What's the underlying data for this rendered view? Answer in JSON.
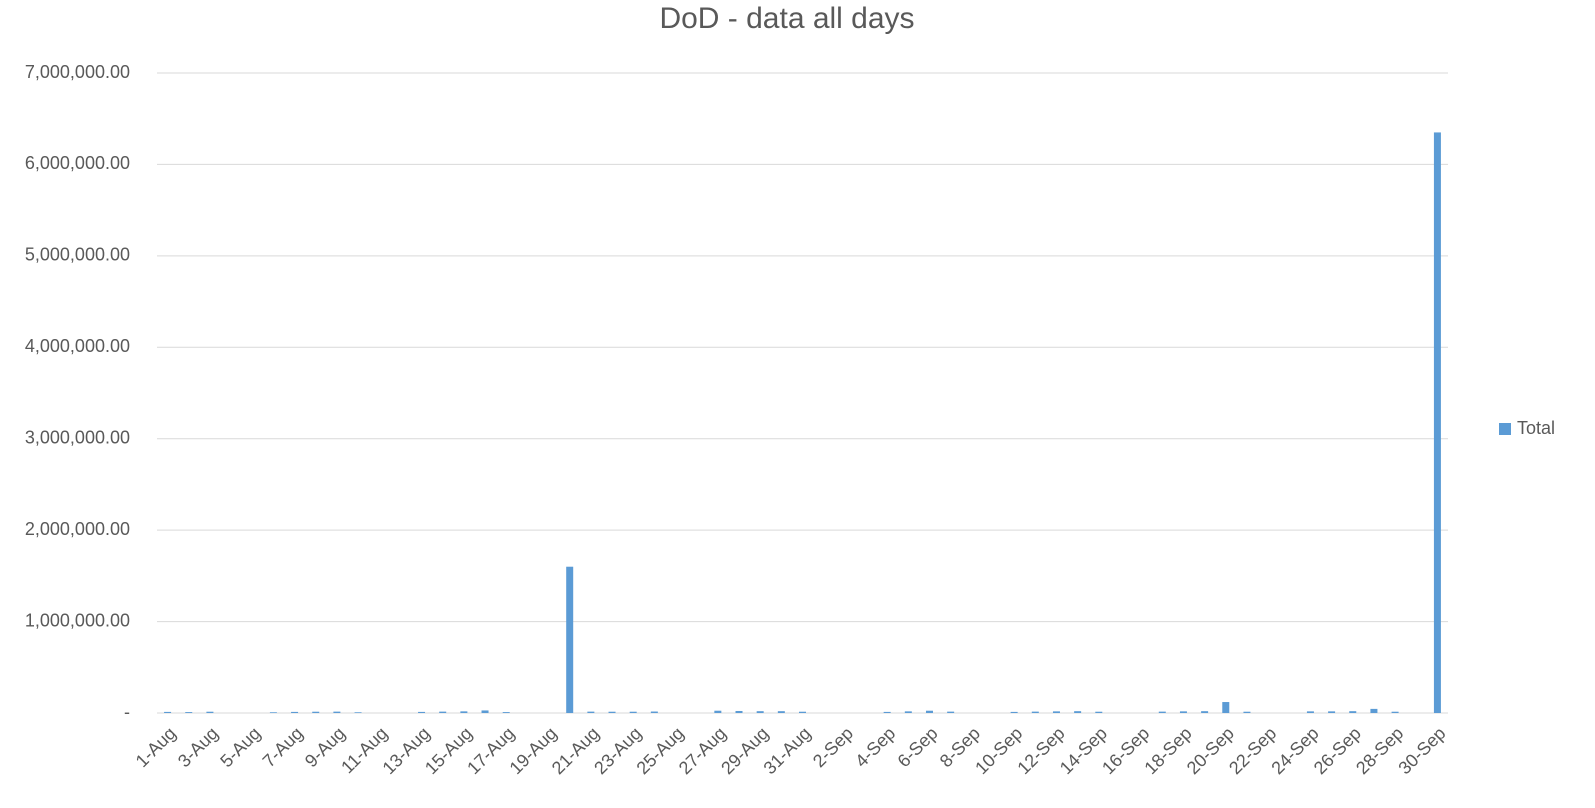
{
  "chart_data": {
    "type": "bar",
    "title": "DoD - data all days",
    "categories": [
      "1-Aug",
      null,
      "3-Aug",
      null,
      "5-Aug",
      null,
      "7-Aug",
      null,
      "9-Aug",
      null,
      "11-Aug",
      null,
      "13-Aug",
      null,
      "15-Aug",
      null,
      "17-Aug",
      null,
      "19-Aug",
      null,
      "21-Aug",
      null,
      "23-Aug",
      null,
      "25-Aug",
      null,
      "27-Aug",
      null,
      "29-Aug",
      null,
      "31-Aug",
      null,
      "2-Sep",
      null,
      "4-Sep",
      null,
      "6-Sep",
      null,
      "8-Sep",
      null,
      "10-Sep",
      null,
      "12-Sep",
      null,
      "14-Sep",
      null,
      "16-Sep",
      null,
      "18-Sep",
      null,
      "20-Sep",
      null,
      "22-Sep",
      null,
      "24-Sep",
      null,
      "26-Sep",
      null,
      "28-Sep",
      null,
      "30-Sep"
    ],
    "series": [
      {
        "name": "Total",
        "color": "#5b9bd5",
        "values": [
          12000,
          10000,
          14000,
          0,
          0,
          8000,
          12000,
          14000,
          15000,
          8000,
          0,
          0,
          12000,
          15000,
          18000,
          28000,
          10000,
          0,
          0,
          1600000,
          15000,
          14000,
          14000,
          16000,
          0,
          0,
          25000,
          22000,
          20000,
          20000,
          14000,
          0,
          0,
          0,
          12000,
          18000,
          25000,
          15000,
          0,
          0,
          12000,
          15000,
          18000,
          20000,
          14000,
          0,
          0,
          15000,
          18000,
          20000,
          120000,
          14000,
          0,
          0,
          18000,
          18000,
          20000,
          45000,
          14000,
          0,
          6350000
        ]
      }
    ],
    "ylim": [
      0,
      7000000
    ],
    "yticks": [
      {
        "value": 0,
        "label": "-"
      },
      {
        "value": 1000000,
        "label": "1,000,000.00"
      },
      {
        "value": 2000000,
        "label": "2,000,000.00"
      },
      {
        "value": 3000000,
        "label": "3,000,000.00"
      },
      {
        "value": 4000000,
        "label": "4,000,000.00"
      },
      {
        "value": 5000000,
        "label": "5,000,000.00"
      },
      {
        "value": 6000000,
        "label": "6,000,000.00"
      },
      {
        "value": 7000000,
        "label": "7,000,000.00"
      }
    ],
    "grid": true,
    "legend": "right"
  }
}
